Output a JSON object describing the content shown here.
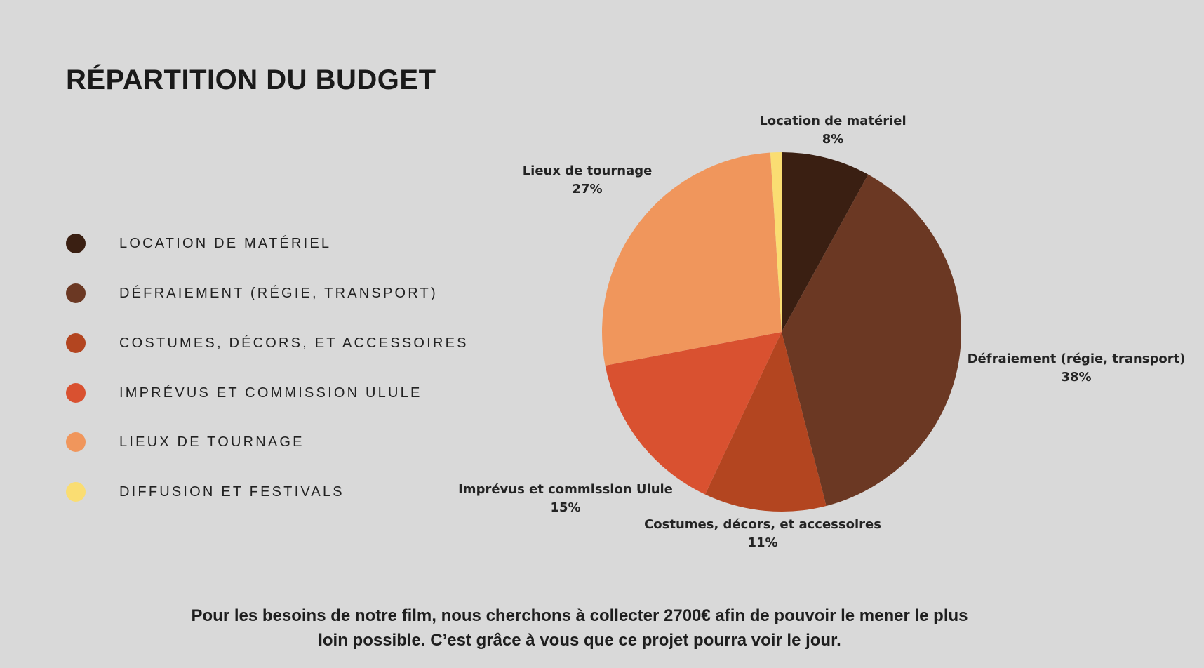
{
  "title": "RÉPARTITION DU BUDGET",
  "legend": [
    {
      "label": "LOCATION DE MATÉRIEL",
      "color": "#3a1f12"
    },
    {
      "label": "DÉFRAIEMENT (RÉGIE, TRANSPORT)",
      "color": "#6b3823"
    },
    {
      "label": "COSTUMES, DÉCORS, ET ACCESSOIRES",
      "color": "#b34520"
    },
    {
      "label": "IMPRÉVUS ET COMMISSION ULULE",
      "color": "#d95130"
    },
    {
      "label": "LIEUX DE TOURNAGE",
      "color": "#f0965c"
    },
    {
      "label": "DIFFUSION ET FESTIVALS",
      "color": "#fadd72"
    }
  ],
  "pie_labels": [
    {
      "name": "Location de matériel",
      "pct": "8%"
    },
    {
      "name": "Défraiement (régie, transport)",
      "pct": "38%"
    },
    {
      "name": "Costumes, décors, et accessoires",
      "pct": "11%"
    },
    {
      "name": "Imprévus et commission Ulule",
      "pct": "15%"
    },
    {
      "name": "Lieux de tournage",
      "pct": "27%"
    }
  ],
  "footer": {
    "line1": "Pour les besoins de notre film, nous cherchons à collecter 2700€ afin de pouvoir le mener le plus",
    "line2": "loin possible. C’est grâce à vous que ce projet pourra voir le jour."
  },
  "chart_data": {
    "type": "pie",
    "title": "RÉPARTITION DU BUDGET",
    "categories": [
      "Location de matériel",
      "Défraiement (régie, transport)",
      "Costumes, décors, et accessoires",
      "Imprévus et commission Ulule",
      "Lieux de tournage",
      "Diffusion et festivals"
    ],
    "values": [
      8,
      38,
      11,
      15,
      27,
      1
    ],
    "labels_shown": [
      "8%",
      "38%",
      "11%",
      "15%",
      "27%",
      ""
    ],
    "colors": [
      "#3a1f12",
      "#6b3823",
      "#b34520",
      "#d95130",
      "#f0965c",
      "#fadd72"
    ],
    "start_angle": "12 o'clock, clockwise",
    "legend_position": "left"
  }
}
